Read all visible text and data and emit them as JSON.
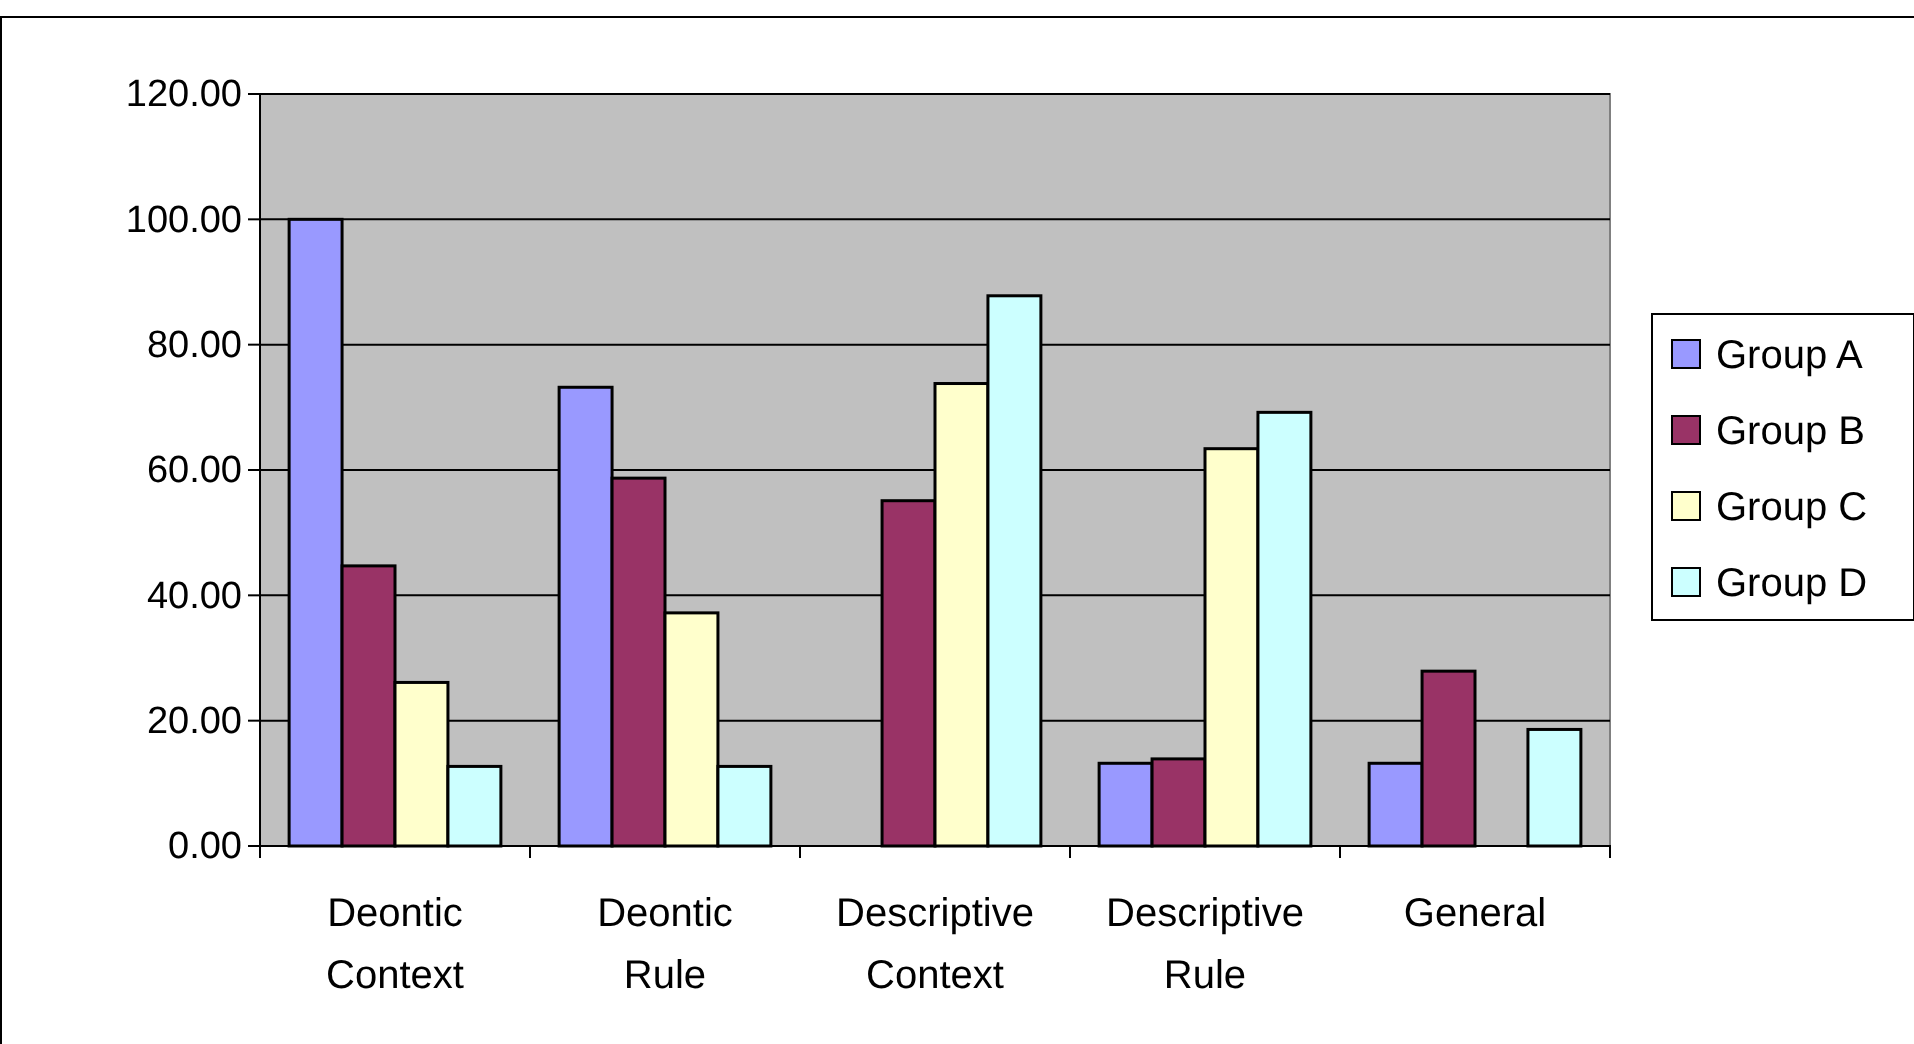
{
  "chart_data": {
    "type": "bar",
    "categories": [
      "Deontic Context",
      "Deontic Rule",
      "Descriptive Context",
      "Descriptive Rule",
      "General"
    ],
    "series": [
      {
        "name": "Group A",
        "color": "#9999ff",
        "values": [
          100,
          73.2,
          null,
          13.2,
          13.2
        ]
      },
      {
        "name": "Group B",
        "color": "#993366",
        "values": [
          44.7,
          58.7,
          55.1,
          13.9,
          27.9
        ]
      },
      {
        "name": "Group C",
        "color": "#ffffcc",
        "values": [
          26.1,
          37.2,
          73.8,
          63.4,
          null
        ]
      },
      {
        "name": "Group D",
        "color": "#ccffff",
        "values": [
          12.7,
          12.7,
          87.8,
          69.2,
          18.6
        ]
      }
    ],
    "ylim": [
      0,
      120
    ],
    "yticks": [
      {
        "value": 0,
        "label": "0.00"
      },
      {
        "value": 20,
        "label": "20.00"
      },
      {
        "value": 40,
        "label": "40.00"
      },
      {
        "value": 60,
        "label": "60.00"
      },
      {
        "value": 80,
        "label": "80.00"
      },
      {
        "value": 100,
        "label": "100.00"
      },
      {
        "value": 120,
        "label": "120.00"
      }
    ],
    "grid": "y",
    "legend": "right"
  }
}
